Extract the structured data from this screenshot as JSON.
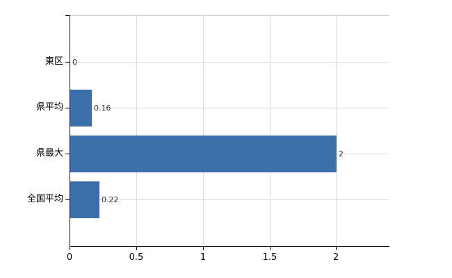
{
  "chart_data": {
    "type": "bar",
    "orientation": "horizontal",
    "title": "",
    "xlabel": "",
    "ylabel": "",
    "categories": [
      "東区",
      "県平均",
      "県最大",
      "全国平均"
    ],
    "values": [
      0,
      0.16,
      2,
      0.22
    ],
    "value_labels": [
      "0",
      "0.16",
      "2",
      "0.22"
    ],
    "x_ticks": [
      0,
      0.5,
      1,
      1.5,
      2
    ],
    "x_tick_labels": [
      "0",
      "0.5",
      "1",
      "1.5",
      "2"
    ],
    "xlim": [
      0,
      2.4
    ],
    "grid": true,
    "legend": false,
    "colors": {
      "bar": "#3b6fa9",
      "gridline": "#d9ddd3",
      "top_border": "#d2d6ce",
      "axis": "#000000",
      "value_text": "#333333",
      "label_text": "#000000",
      "background": "#ffffff"
    }
  }
}
